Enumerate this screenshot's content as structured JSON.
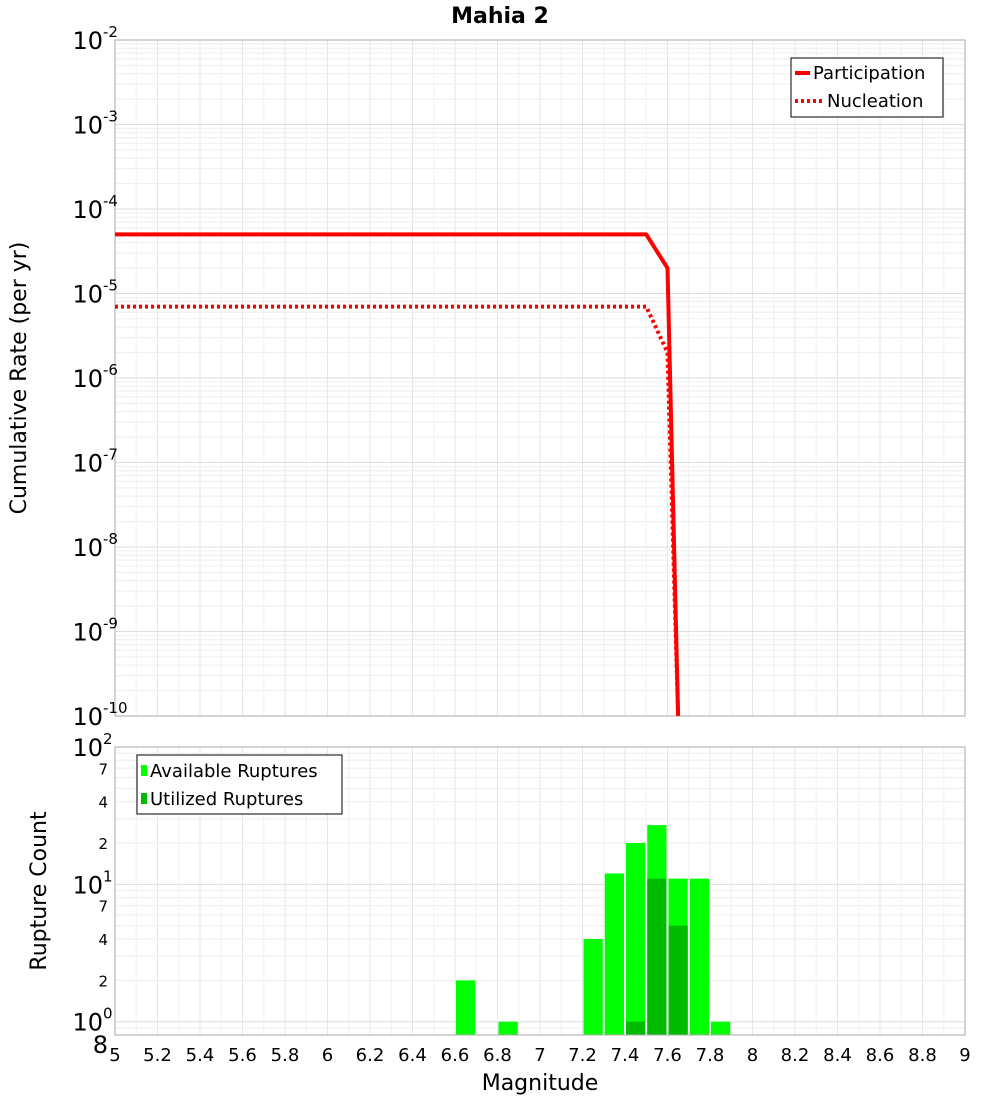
{
  "chart_data": [
    {
      "type": "line",
      "title": "Mahia 2",
      "xlabel": "Magnitude",
      "ylabel": "Cumulative Rate (per yr)",
      "xlim": [
        5,
        9
      ],
      "ylim": [
        1e-10,
        0.01
      ],
      "yscale": "log",
      "y_ticks": [
        {
          "base": "10",
          "exp": "-10",
          "value": 1e-10
        },
        {
          "base": "10",
          "exp": "-9",
          "value": 1e-09
        },
        {
          "base": "10",
          "exp": "-8",
          "value": 1e-08
        },
        {
          "base": "10",
          "exp": "-7",
          "value": 1e-07
        },
        {
          "base": "10",
          "exp": "-6",
          "value": 1e-06
        },
        {
          "base": "10",
          "exp": "-5",
          "value": 1e-05
        },
        {
          "base": "10",
          "exp": "-4",
          "value": 0.0001
        },
        {
          "base": "10",
          "exp": "-3",
          "value": 0.001
        },
        {
          "base": "10",
          "exp": "-2",
          "value": 0.01
        }
      ],
      "legend_position": "top-right",
      "series": [
        {
          "name": "Participation",
          "style": "solid",
          "color": "#ff0000",
          "x": [
            5.0,
            7.5,
            7.6,
            7.65
          ],
          "y": [
            5e-05,
            5e-05,
            2e-05,
            1e-10
          ]
        },
        {
          "name": "Nucleation",
          "style": "dotted",
          "color": "#ff0000",
          "x": [
            5.0,
            7.5,
            7.6,
            7.65
          ],
          "y": [
            7e-06,
            7e-06,
            2e-06,
            1e-10
          ]
        }
      ]
    },
    {
      "type": "bar",
      "xlabel": "Magnitude",
      "ylabel": "Rupture Count",
      "xlim": [
        5,
        9
      ],
      "ylim": [
        0.8,
        100
      ],
      "yscale": "log",
      "x_ticks": [
        "5",
        "5.2",
        "5.4",
        "5.6",
        "5.8",
        "6",
        "6.2",
        "6.4",
        "6.6",
        "6.8",
        "7",
        "7.2",
        "7.4",
        "7.6",
        "7.8",
        "8",
        "8.2",
        "8.4",
        "8.6",
        "8.8",
        "9"
      ],
      "y_ticks": [
        {
          "base": "10",
          "exp": "2",
          "value": 100
        },
        {
          "label": "7",
          "value": 70
        },
        {
          "label": "4",
          "value": 40
        },
        {
          "label": "2",
          "value": 20
        },
        {
          "base": "10",
          "exp": "1",
          "value": 10
        },
        {
          "label": "7",
          "value": 7
        },
        {
          "label": "4",
          "value": 4
        },
        {
          "label": "2",
          "value": 2
        },
        {
          "base": "10",
          "exp": "0",
          "value": 1
        },
        {
          "label": "8",
          "value": 0.8
        }
      ],
      "legend_position": "top-left",
      "bin_width": 0.1,
      "series": [
        {
          "name": "Available Ruptures",
          "color": "#00ff00",
          "x": [
            6.65,
            6.85,
            7.25,
            7.35,
            7.45,
            7.55,
            7.65,
            7.75,
            7.85
          ],
          "values": [
            2,
            1,
            4,
            12,
            20,
            27,
            11,
            11,
            1
          ]
        },
        {
          "name": "Utilized Ruptures",
          "color": "#00bb00",
          "x": [
            7.45,
            7.55,
            7.65
          ],
          "values": [
            1,
            11,
            5
          ]
        }
      ]
    }
  ]
}
